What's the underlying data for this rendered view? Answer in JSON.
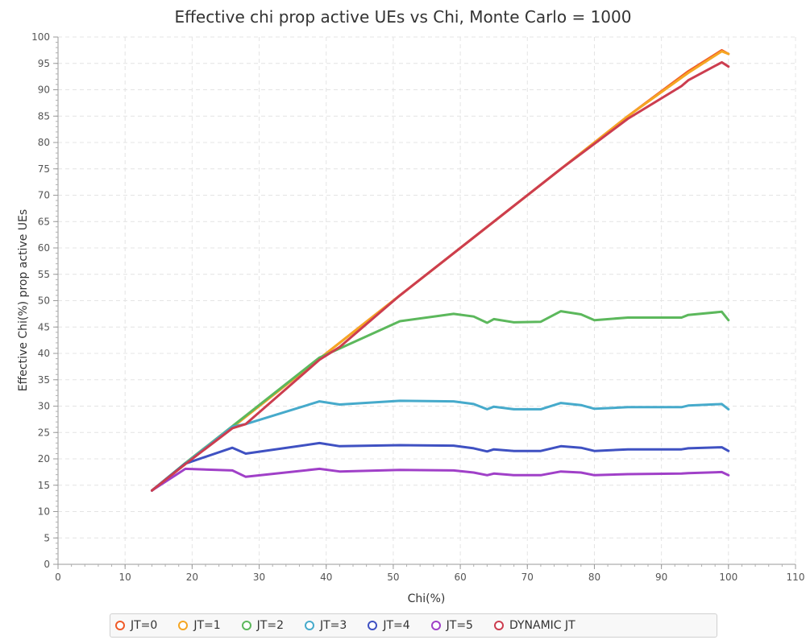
{
  "chart_data": {
    "type": "line",
    "title": "Effective chi prop active UEs vs Chi, Monte Carlo = 1000",
    "xlabel": "Chi(%)",
    "ylabel": "Effective Chi(%) prop active UEs",
    "xlim": [
      0,
      110
    ],
    "ylim": [
      0,
      100
    ],
    "x_ticks": [
      0,
      10,
      20,
      30,
      40,
      50,
      60,
      70,
      80,
      90,
      100,
      110
    ],
    "y_ticks": [
      0,
      5,
      10,
      15,
      20,
      25,
      30,
      35,
      40,
      45,
      50,
      55,
      60,
      65,
      70,
      75,
      80,
      85,
      90,
      95,
      100
    ],
    "grid": true,
    "legend_position": "bottom",
    "series": [
      {
        "name": "JT=0",
        "color": "#f05a28",
        "points": [
          [
            14,
            14
          ],
          [
            19,
            19
          ],
          [
            26,
            26
          ],
          [
            39,
            39
          ],
          [
            51,
            51
          ],
          [
            59,
            59
          ],
          [
            65,
            65
          ],
          [
            75,
            75
          ],
          [
            85,
            85
          ],
          [
            94,
            93.5
          ],
          [
            99,
            97.5
          ],
          [
            100,
            96.8
          ]
        ]
      },
      {
        "name": "JT=1",
        "color": "#f5a623",
        "points": [
          [
            14,
            14
          ],
          [
            19,
            19
          ],
          [
            26,
            26
          ],
          [
            39,
            39
          ],
          [
            42,
            42
          ],
          [
            51,
            51
          ],
          [
            59,
            59
          ],
          [
            65,
            65
          ],
          [
            75,
            75
          ],
          [
            85,
            85
          ],
          [
            94,
            93.2
          ],
          [
            99,
            97.3
          ],
          [
            100,
            96.8
          ]
        ]
      },
      {
        "name": "JT=2",
        "color": "#5cb85c",
        "points": [
          [
            14,
            14
          ],
          [
            19,
            19.2
          ],
          [
            26,
            26.2
          ],
          [
            39,
            39.2
          ],
          [
            51,
            46.1
          ],
          [
            59,
            47.5
          ],
          [
            62,
            47
          ],
          [
            64,
            45.8
          ],
          [
            65,
            46.5
          ],
          [
            68,
            45.9
          ],
          [
            72,
            46
          ],
          [
            75,
            48
          ],
          [
            78,
            47.4
          ],
          [
            80,
            46.3
          ],
          [
            85,
            46.8
          ],
          [
            93,
            46.8
          ],
          [
            94,
            47.3
          ],
          [
            99,
            47.9
          ],
          [
            100,
            46.3
          ]
        ]
      },
      {
        "name": "JT=3",
        "color": "#46aacb",
        "points": [
          [
            14,
            14
          ],
          [
            19,
            19.1
          ],
          [
            26,
            26.1
          ],
          [
            28,
            26.6
          ],
          [
            39,
            30.9
          ],
          [
            42,
            30.3
          ],
          [
            51,
            31
          ],
          [
            59,
            30.9
          ],
          [
            62,
            30.4
          ],
          [
            64,
            29.4
          ],
          [
            65,
            29.9
          ],
          [
            68,
            29.4
          ],
          [
            72,
            29.4
          ],
          [
            75,
            30.6
          ],
          [
            78,
            30.2
          ],
          [
            80,
            29.5
          ],
          [
            85,
            29.8
          ],
          [
            93,
            29.8
          ],
          [
            94,
            30.1
          ],
          [
            99,
            30.4
          ],
          [
            100,
            29.4
          ]
        ]
      },
      {
        "name": "JT=4",
        "color": "#3f51c2",
        "points": [
          [
            14,
            14
          ],
          [
            19,
            19.1
          ],
          [
            26,
            22.1
          ],
          [
            28,
            21
          ],
          [
            39,
            23
          ],
          [
            42,
            22.4
          ],
          [
            51,
            22.6
          ],
          [
            59,
            22.5
          ],
          [
            62,
            22
          ],
          [
            64,
            21.4
          ],
          [
            65,
            21.8
          ],
          [
            68,
            21.5
          ],
          [
            72,
            21.5
          ],
          [
            75,
            22.4
          ],
          [
            78,
            22.1
          ],
          [
            80,
            21.5
          ],
          [
            85,
            21.8
          ],
          [
            93,
            21.8
          ],
          [
            94,
            22
          ],
          [
            99,
            22.2
          ],
          [
            100,
            21.5
          ]
        ]
      },
      {
        "name": "JT=5",
        "color": "#a040c8",
        "points": [
          [
            14,
            14
          ],
          [
            18,
            17.3
          ],
          [
            19,
            18.1
          ],
          [
            26,
            17.8
          ],
          [
            28,
            16.6
          ],
          [
            39,
            18.1
          ],
          [
            42,
            17.6
          ],
          [
            51,
            17.9
          ],
          [
            59,
            17.8
          ],
          [
            62,
            17.4
          ],
          [
            64,
            16.9
          ],
          [
            65,
            17.2
          ],
          [
            68,
            16.9
          ],
          [
            72,
            16.9
          ],
          [
            75,
            17.6
          ],
          [
            78,
            17.4
          ],
          [
            80,
            16.9
          ],
          [
            85,
            17.1
          ],
          [
            93,
            17.2
          ],
          [
            94,
            17.3
          ],
          [
            99,
            17.5
          ],
          [
            100,
            16.9
          ]
        ]
      },
      {
        "name": "DYNAMIC JT",
        "color": "#cc3d4f",
        "points": [
          [
            14,
            14
          ],
          [
            19,
            19
          ],
          [
            26,
            25.8
          ],
          [
            28,
            26.6
          ],
          [
            39,
            38.8
          ],
          [
            42,
            41.2
          ],
          [
            51,
            51
          ],
          [
            59,
            59
          ],
          [
            65,
            65
          ],
          [
            75,
            75
          ],
          [
            85,
            84.5
          ],
          [
            93,
            90.7
          ],
          [
            94,
            91.8
          ],
          [
            99,
            95.2
          ],
          [
            100,
            94.4
          ]
        ]
      }
    ]
  }
}
